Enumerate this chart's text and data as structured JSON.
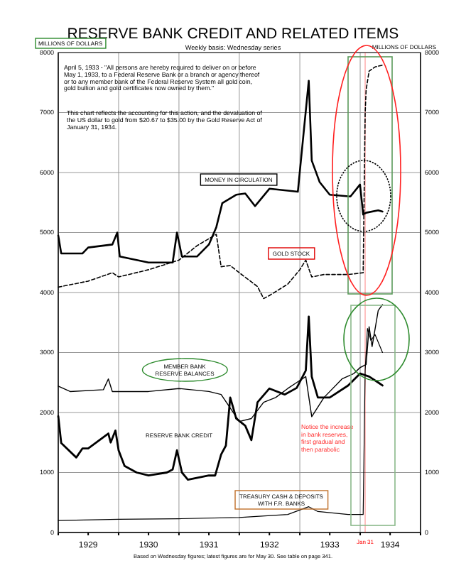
{
  "chart_data": {
    "type": "line",
    "title": "RESERVE BANK CREDIT AND RELATED ITEMS",
    "subtitle": "Weekly basis: Wednesday series",
    "ylabel": "MILLIONS OF DOLLARS",
    "y2label": "MILLIONS OF DOLLARS",
    "xlim": [
      "1929-01-01",
      "1935-01-01"
    ],
    "xticks": [
      {
        "value": "1929-01-01",
        "label": null
      },
      {
        "value": "1929-07-01",
        "label": "1929"
      },
      {
        "value": "1930-01-01",
        "label": null
      },
      {
        "value": "1930-07-01",
        "label": "1930"
      },
      {
        "value": "1931-01-01",
        "label": null
      },
      {
        "value": "1931-07-01",
        "label": "1931"
      },
      {
        "value": "1932-01-01",
        "label": null
      },
      {
        "value": "1932-07-01",
        "label": "1932"
      },
      {
        "value": "1933-01-01",
        "label": null
      },
      {
        "value": "1933-07-01",
        "label": "1933"
      },
      {
        "value": "1934-01-01",
        "label": null
      },
      {
        "value": "1934-07-01",
        "label": "1934"
      },
      {
        "value": "1935-01-01",
        "label": null
      }
    ],
    "ylim": [
      0,
      8000
    ],
    "yticks": [
      0,
      1000,
      2000,
      3000,
      4000,
      5000,
      6000,
      7000,
      8000
    ],
    "y2lim": [
      0,
      8000
    ],
    "y2ticks": [
      0,
      1000,
      2000,
      3000,
      4000,
      5000,
      6000,
      7000,
      8000
    ],
    "grid": true,
    "line_style": "solid",
    "marker": "none",
    "ref_lines": [
      {
        "axis": "x",
        "value": "1934-01-31",
        "label": "Jan 31",
        "color": "#ff0000"
      }
    ],
    "annotations": [
      "April 5, 1933 - \"All persons are hereby required to deliver on or before May 1, 1933, to a Federal Reserve Bank or a branch or agency thereof or to any member bank of the Federal Reserve System all gold coin, gold bullion and gold certificates now owned by them.\"",
      "This chart reflects the accounting for this action, and the devaluation of the US dollar to gold from $20.67 to $35.00 by the Gold Reserve Act of January 31, 1934.",
      "Notice the increase in bank reserves, first gradual and then parabolic",
      "Based on Wednesday figures; latest figures are for May 30.  See table on page 341."
    ],
    "series": [
      {
        "name": "MONEY IN CIRCULATION",
        "color": "#000000",
        "x": [
          "1929-01-01",
          "1929-01-19",
          "1929-05-27",
          "1929-07-01",
          "1929-11-24",
          "1929-12-24",
          "1930-01-08",
          "1930-07-01",
          "1930-11-24",
          "1930-12-20",
          "1931-01-19",
          "1931-04-20",
          "1931-07-01",
          "1931-08-15",
          "1931-09-20",
          "1931-12-13",
          "1932-02-06",
          "1932-04-05",
          "1932-07-01",
          "1932-12-20",
          "1933-02-24",
          "1933-03-14",
          "1933-05-01",
          "1933-07-01",
          "1933-11-03",
          "1933-12-31",
          "1934-01-19",
          "1934-02-06",
          "1934-04-20",
          "1934-05-16"
        ],
        "values": [
          4950,
          4650,
          4650,
          4750,
          4800,
          5000,
          4600,
          4500,
          4500,
          5000,
          4600,
          4600,
          4800,
          5090,
          5490,
          5630,
          5650,
          5440,
          5730,
          5680,
          7530,
          6200,
          5840,
          5630,
          5600,
          5800,
          5300,
          5330,
          5370,
          5350
        ]
      },
      {
        "name": "GOLD STOCK",
        "color": "#000000",
        "line_style": "dashed",
        "x": [
          "1929-01-01",
          "1929-07-01",
          "1929-11-24",
          "1930-01-01",
          "1930-07-01",
          "1931-01-01",
          "1931-04-20",
          "1931-08-15",
          "1931-09-13",
          "1931-11-07",
          "1932-01-01",
          "1932-04-20",
          "1932-05-27",
          "1932-07-01",
          "1932-10-20",
          "1933-01-01",
          "1933-02-06",
          "1933-03-14",
          "1933-05-27",
          "1933-10-20",
          "1934-01-19",
          "1934-01-31",
          "1934-02-06",
          "1934-02-24",
          "1934-04-01",
          "1934-05-16"
        ],
        "values": [
          4090,
          4190,
          4330,
          4260,
          4380,
          4540,
          4780,
          4970,
          4430,
          4450,
          4330,
          4100,
          3900,
          3950,
          4140,
          4380,
          4540,
          4260,
          4300,
          4300,
          4330,
          6980,
          7380,
          7690,
          7760,
          7790
        ]
      },
      {
        "name": "MEMBER BANK RESERVE BALANCES",
        "color": "#000000",
        "x": [
          "1929-01-01",
          "1929-03-14",
          "1929-10-01",
          "1929-10-31",
          "1929-11-24",
          "1930-07-01",
          "1931-01-01",
          "1931-07-01",
          "1931-09-13",
          "1932-01-01",
          "1932-03-14",
          "1932-05-27",
          "1932-08-08",
          "1932-10-20",
          "1932-12-13",
          "1933-02-06",
          "1933-03-14",
          "1933-05-27",
          "1933-09-13",
          "1933-11-24",
          "1934-01-01",
          "1934-02-06",
          "1934-02-24",
          "1934-03-14",
          "1934-04-20",
          "1934-05-16"
        ],
        "values": [
          2440,
          2350,
          2380,
          2560,
          2350,
          2350,
          2400,
          2350,
          2300,
          1850,
          1900,
          2170,
          2250,
          2400,
          2500,
          2600,
          1930,
          2250,
          2560,
          2650,
          2750,
          2800,
          3430,
          3100,
          3700,
          3800
        ]
      },
      {
        "name": "RESERVE BANK CREDIT",
        "color": "#000000",
        "x": [
          "1929-01-01",
          "1929-01-19",
          "1929-04-20",
          "1929-05-27",
          "1929-07-01",
          "1929-10-31",
          "1929-11-14",
          "1929-12-13",
          "1930-01-01",
          "1930-02-06",
          "1930-04-20",
          "1930-07-01",
          "1930-10-20",
          "1930-11-24",
          "1930-12-20",
          "1931-01-19",
          "1931-02-24",
          "1931-07-01",
          "1931-08-08",
          "1931-09-13",
          "1931-10-12",
          "1931-11-07",
          "1931-11-24",
          "1931-12-13",
          "1932-02-06",
          "1932-03-14",
          "1932-04-20",
          "1932-07-01",
          "1932-10-01",
          "1932-12-13",
          "1933-02-06",
          "1933-02-24",
          "1933-03-14",
          "1933-04-20",
          "1933-07-01",
          "1933-10-20",
          "1934-01-01",
          "1934-02-24",
          "1934-04-20",
          "1934-05-16"
        ],
        "values": [
          1940,
          1490,
          1250,
          1400,
          1400,
          1650,
          1500,
          1700,
          1370,
          1110,
          1000,
          950,
          1000,
          1050,
          1370,
          1000,
          880,
          950,
          950,
          1300,
          1450,
          2250,
          2090,
          1900,
          1780,
          1540,
          2170,
          2400,
          2300,
          2410,
          2700,
          3600,
          2600,
          2250,
          2250,
          2450,
          2650,
          2600,
          2500,
          2450
        ]
      },
      {
        "name": "TREASURY CASH & DEPOSITS WITH F.R. BANKS",
        "color": "#000000",
        "x": [
          "1929-01-01",
          "1930-01-01",
          "1931-01-01",
          "1932-01-01",
          "1932-10-20",
          "1933-02-24",
          "1933-04-20",
          "1933-10-20",
          "1934-01-19",
          "1934-01-31",
          "1934-02-14",
          "1934-03-07",
          "1934-04-01",
          "1934-05-16"
        ],
        "values": [
          200,
          220,
          230,
          250,
          300,
          430,
          350,
          300,
          300,
          2700,
          3400,
          3200,
          3300,
          3000
        ]
      }
    ]
  }
}
